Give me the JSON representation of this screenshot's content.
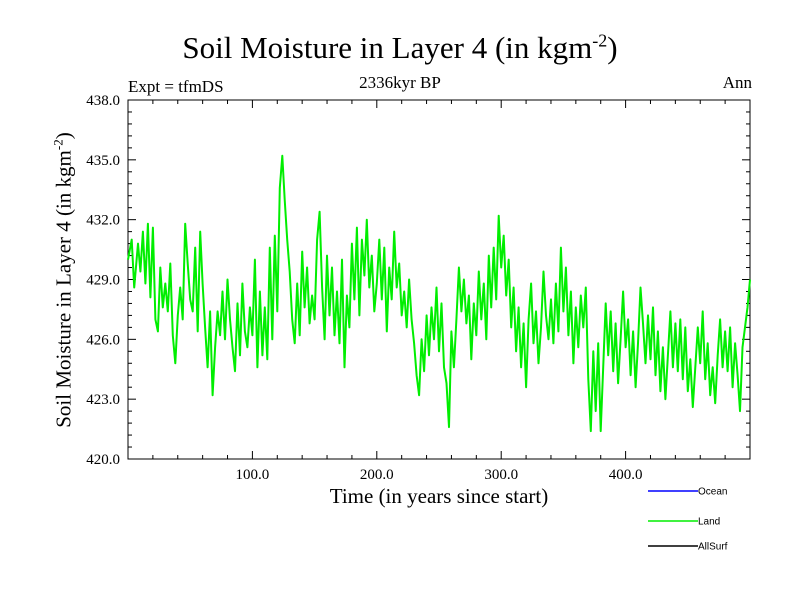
{
  "header": {
    "title_main": "Soil Moisture in Layer 4 (in kgm",
    "title_exp": "-2",
    "title_close": ")",
    "subtitle": "2336kyr BP",
    "expt": "Expt = tfmDS",
    "season": "Ann"
  },
  "chart_data": {
    "type": "line",
    "title": "Soil Moisture in Layer 4 (in kgm-2)",
    "xlabel": "Time (in years since start)",
    "ylabel": "Soil Moisture in Layer 4 (in kgm-2)",
    "ylabel_main": "Soil Moisture in Layer 4 (in kgm",
    "ylabel_exp": "-2",
    "ylabel_close": ")",
    "xlim": [
      0,
      500
    ],
    "ylim": [
      420,
      438
    ],
    "x_ticks": [
      100,
      200,
      300,
      400
    ],
    "x_tick_labels": [
      "100.0",
      "200.0",
      "300.0",
      "400.0"
    ],
    "y_ticks": [
      420,
      423,
      426,
      429,
      432,
      435,
      438
    ],
    "y_tick_labels": [
      "420.0",
      "423.0",
      "426.0",
      "429.0",
      "432.0",
      "435.0",
      "438.0"
    ],
    "series": [
      {
        "name": "Ocean",
        "color": "#0000ff",
        "points": []
      },
      {
        "name": "Land",
        "color": "#00ee00",
        "points": [
          [
            0,
            430.0
          ],
          [
            3,
            431.0
          ],
          [
            5,
            428.6
          ],
          [
            8,
            430.8
          ],
          [
            10,
            429.4
          ],
          [
            12,
            431.4
          ],
          [
            14,
            428.8
          ],
          [
            16,
            431.8
          ],
          [
            18,
            428.1
          ],
          [
            20,
            431.6
          ],
          [
            22,
            427.0
          ],
          [
            24,
            426.4
          ],
          [
            26,
            429.6
          ],
          [
            28,
            427.6
          ],
          [
            30,
            428.8
          ],
          [
            32,
            427.4
          ],
          [
            34,
            429.8
          ],
          [
            36,
            426.2
          ],
          [
            38,
            424.8
          ],
          [
            40,
            427.2
          ],
          [
            42,
            428.6
          ],
          [
            44,
            427.0
          ],
          [
            46,
            431.8
          ],
          [
            48,
            429.8
          ],
          [
            50,
            428.0
          ],
          [
            52,
            427.4
          ],
          [
            54,
            430.6
          ],
          [
            56,
            426.4
          ],
          [
            58,
            431.4
          ],
          [
            60,
            428.8
          ],
          [
            62,
            426.6
          ],
          [
            64,
            424.6
          ],
          [
            66,
            427.4
          ],
          [
            68,
            423.2
          ],
          [
            70,
            425.6
          ],
          [
            72,
            427.4
          ],
          [
            74,
            426.2
          ],
          [
            76,
            428.4
          ],
          [
            78,
            426.0
          ],
          [
            80,
            429.0
          ],
          [
            82,
            427.0
          ],
          [
            84,
            425.6
          ],
          [
            86,
            424.4
          ],
          [
            88,
            427.8
          ],
          [
            90,
            425.2
          ],
          [
            92,
            428.8
          ],
          [
            94,
            426.4
          ],
          [
            96,
            425.6
          ],
          [
            98,
            427.6
          ],
          [
            100,
            426.2
          ],
          [
            102,
            430.0
          ],
          [
            104,
            424.6
          ],
          [
            106,
            428.4
          ],
          [
            108,
            425.2
          ],
          [
            110,
            427.6
          ],
          [
            112,
            425.0
          ],
          [
            114,
            430.6
          ],
          [
            116,
            426.0
          ],
          [
            118,
            431.2
          ],
          [
            120,
            427.4
          ],
          [
            122,
            433.6
          ],
          [
            124,
            435.2
          ],
          [
            126,
            433.0
          ],
          [
            128,
            431.0
          ],
          [
            130,
            429.4
          ],
          [
            132,
            427.0
          ],
          [
            134,
            425.8
          ],
          [
            136,
            428.8
          ],
          [
            138,
            426.2
          ],
          [
            140,
            430.4
          ],
          [
            142,
            427.6
          ],
          [
            144,
            429.6
          ],
          [
            146,
            426.8
          ],
          [
            148,
            428.2
          ],
          [
            150,
            427.0
          ],
          [
            152,
            431.0
          ],
          [
            154,
            432.4
          ],
          [
            156,
            428.6
          ],
          [
            158,
            426.0
          ],
          [
            160,
            430.2
          ],
          [
            162,
            427.2
          ],
          [
            164,
            429.6
          ],
          [
            166,
            426.2
          ],
          [
            168,
            428.4
          ],
          [
            170,
            425.8
          ],
          [
            172,
            430.0
          ],
          [
            174,
            424.6
          ],
          [
            176,
            428.2
          ],
          [
            178,
            426.6
          ],
          [
            180,
            430.8
          ],
          [
            182,
            428.0
          ],
          [
            184,
            431.6
          ],
          [
            186,
            427.2
          ],
          [
            188,
            431.0
          ],
          [
            190,
            429.2
          ],
          [
            192,
            432.0
          ],
          [
            194,
            428.6
          ],
          [
            196,
            430.2
          ],
          [
            198,
            427.4
          ],
          [
            200,
            428.8
          ],
          [
            202,
            431.0
          ],
          [
            204,
            428.0
          ],
          [
            206,
            430.6
          ],
          [
            208,
            426.4
          ],
          [
            210,
            429.6
          ],
          [
            212,
            428.0
          ],
          [
            214,
            431.4
          ],
          [
            216,
            428.6
          ],
          [
            218,
            429.8
          ],
          [
            220,
            427.2
          ],
          [
            222,
            428.4
          ],
          [
            224,
            426.6
          ],
          [
            226,
            429.0
          ],
          [
            228,
            427.0
          ],
          [
            230,
            425.8
          ],
          [
            232,
            424.2
          ],
          [
            234,
            423.2
          ],
          [
            236,
            426.0
          ],
          [
            238,
            424.4
          ],
          [
            240,
            427.2
          ],
          [
            242,
            425.2
          ],
          [
            244,
            427.6
          ],
          [
            246,
            426.0
          ],
          [
            248,
            428.6
          ],
          [
            250,
            425.4
          ],
          [
            252,
            427.8
          ],
          [
            254,
            424.6
          ],
          [
            256,
            423.8
          ],
          [
            258,
            421.6
          ],
          [
            260,
            426.4
          ],
          [
            262,
            424.6
          ],
          [
            264,
            427.0
          ],
          [
            266,
            429.6
          ],
          [
            268,
            427.4
          ],
          [
            270,
            429.0
          ],
          [
            272,
            426.8
          ],
          [
            274,
            428.2
          ],
          [
            276,
            425.0
          ],
          [
            278,
            427.8
          ],
          [
            280,
            426.2
          ],
          [
            282,
            429.4
          ],
          [
            284,
            427.0
          ],
          [
            286,
            428.8
          ],
          [
            288,
            426.0
          ],
          [
            290,
            430.2
          ],
          [
            292,
            427.6
          ],
          [
            294,
            430.6
          ],
          [
            296,
            428.0
          ],
          [
            298,
            432.2
          ],
          [
            300,
            429.6
          ],
          [
            302,
            431.2
          ],
          [
            304,
            428.2
          ],
          [
            306,
            430.0
          ],
          [
            308,
            426.6
          ],
          [
            310,
            428.6
          ],
          [
            312,
            425.4
          ],
          [
            314,
            427.6
          ],
          [
            316,
            424.6
          ],
          [
            318,
            426.8
          ],
          [
            320,
            423.6
          ],
          [
            322,
            427.0
          ],
          [
            324,
            428.8
          ],
          [
            326,
            425.8
          ],
          [
            328,
            427.4
          ],
          [
            330,
            424.8
          ],
          [
            332,
            426.6
          ],
          [
            334,
            429.4
          ],
          [
            336,
            427.2
          ],
          [
            338,
            426.0
          ],
          [
            340,
            428.0
          ],
          [
            342,
            425.8
          ],
          [
            344,
            428.8
          ],
          [
            346,
            426.4
          ],
          [
            348,
            430.6
          ],
          [
            350,
            427.4
          ],
          [
            352,
            429.6
          ],
          [
            354,
            426.2
          ],
          [
            356,
            428.4
          ],
          [
            358,
            424.8
          ],
          [
            360,
            427.6
          ],
          [
            362,
            425.6
          ],
          [
            364,
            428.2
          ],
          [
            366,
            426.6
          ],
          [
            368,
            428.6
          ],
          [
            370,
            424.0
          ],
          [
            372,
            421.4
          ],
          [
            374,
            425.4
          ],
          [
            376,
            422.4
          ],
          [
            378,
            425.8
          ],
          [
            380,
            421.4
          ],
          [
            382,
            424.6
          ],
          [
            384,
            427.8
          ],
          [
            386,
            425.2
          ],
          [
            388,
            427.4
          ],
          [
            390,
            424.4
          ],
          [
            392,
            426.8
          ],
          [
            394,
            423.8
          ],
          [
            396,
            426.0
          ],
          [
            398,
            428.4
          ],
          [
            400,
            425.6
          ],
          [
            402,
            427.0
          ],
          [
            404,
            424.2
          ],
          [
            406,
            426.4
          ],
          [
            408,
            423.6
          ],
          [
            410,
            425.8
          ],
          [
            412,
            428.6
          ],
          [
            414,
            426.8
          ],
          [
            416,
            424.8
          ],
          [
            418,
            427.2
          ],
          [
            420,
            425.0
          ],
          [
            422,
            427.6
          ],
          [
            424,
            424.2
          ],
          [
            426,
            426.4
          ],
          [
            428,
            423.4
          ],
          [
            430,
            425.6
          ],
          [
            432,
            423.0
          ],
          [
            434,
            425.2
          ],
          [
            436,
            427.4
          ],
          [
            438,
            424.6
          ],
          [
            440,
            426.8
          ],
          [
            442,
            424.4
          ],
          [
            444,
            427.0
          ],
          [
            446,
            424.0
          ],
          [
            448,
            426.6
          ],
          [
            450,
            423.4
          ],
          [
            452,
            425.0
          ],
          [
            454,
            422.6
          ],
          [
            456,
            424.6
          ],
          [
            458,
            426.6
          ],
          [
            460,
            424.8
          ],
          [
            462,
            427.4
          ],
          [
            464,
            424.0
          ],
          [
            466,
            425.8
          ],
          [
            468,
            423.2
          ],
          [
            470,
            424.6
          ],
          [
            472,
            422.8
          ],
          [
            474,
            425.2
          ],
          [
            476,
            427.0
          ],
          [
            478,
            424.6
          ],
          [
            480,
            426.4
          ],
          [
            482,
            424.4
          ],
          [
            484,
            426.6
          ],
          [
            486,
            423.6
          ],
          [
            488,
            425.8
          ],
          [
            490,
            424.2
          ],
          [
            492,
            422.4
          ],
          [
            494,
            425.6
          ],
          [
            496,
            426.6
          ],
          [
            498,
            427.6
          ],
          [
            500,
            429.0
          ]
        ]
      },
      {
        "name": "AllSurf",
        "color": "#000000",
        "points": []
      }
    ]
  }
}
